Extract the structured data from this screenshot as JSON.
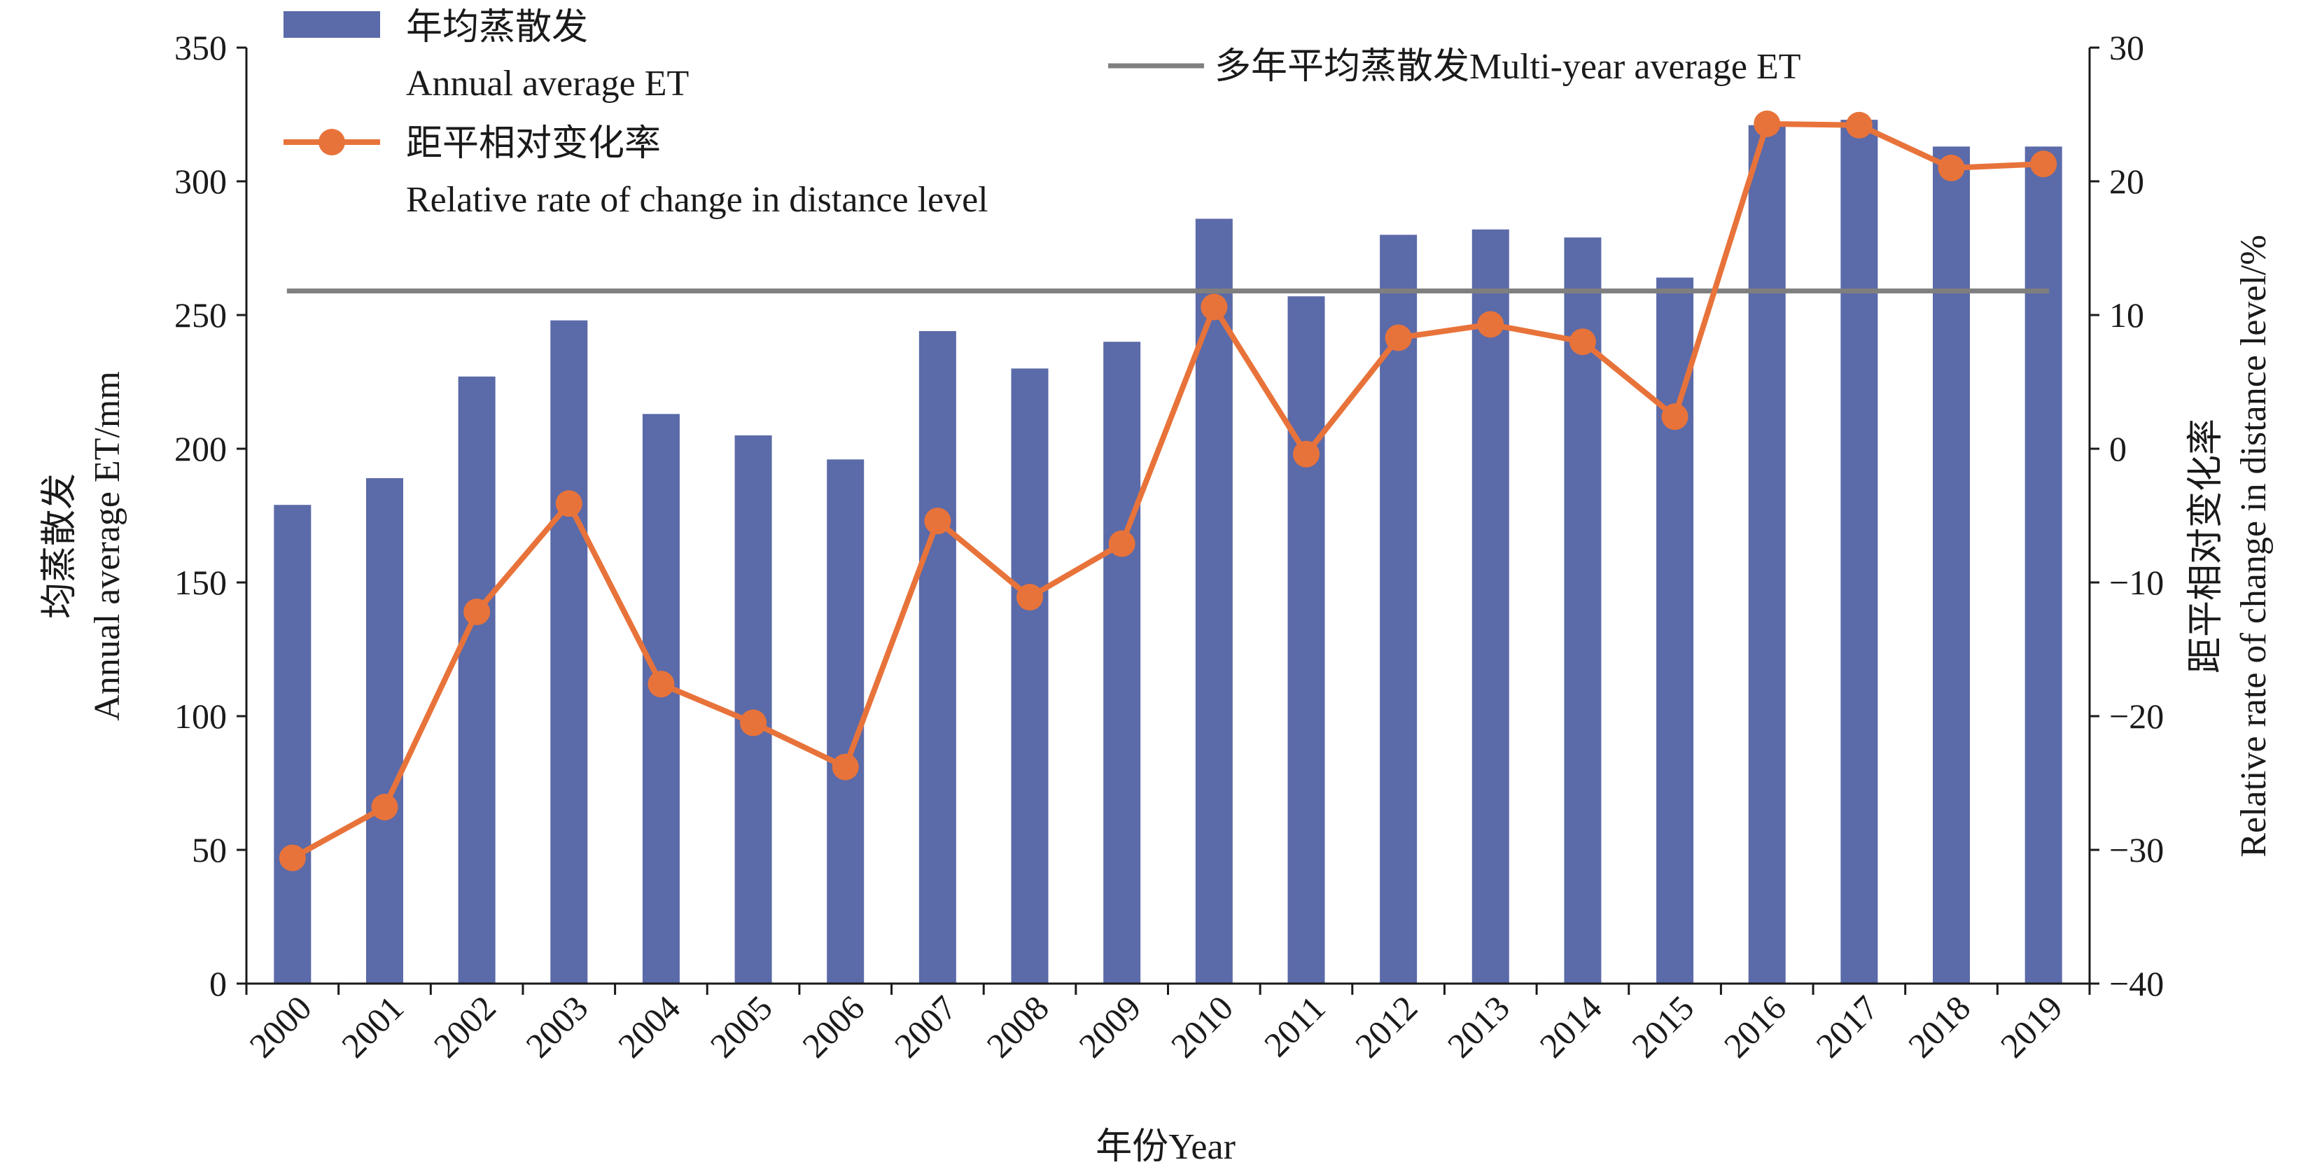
{
  "chart_data": {
    "type": "bar",
    "categories": [
      "2000",
      "2001",
      "2002",
      "2003",
      "2004",
      "2005",
      "2006",
      "2007",
      "2008",
      "2009",
      "2010",
      "2011",
      "2012",
      "2013",
      "2014",
      "2015",
      "2016",
      "2017",
      "2018",
      "2019"
    ],
    "series": [
      {
        "name": "年均蒸散发 Annual average ET",
        "type": "bar",
        "axis": "left",
        "color": "#5b6aa8",
        "values": [
          179,
          189,
          227,
          248,
          213,
          205,
          196,
          244,
          230,
          240,
          286,
          257,
          280,
          282,
          279,
          264,
          321,
          323,
          313,
          313
        ]
      },
      {
        "name": "距平相对变化率 Relative rate of change in distance level",
        "type": "line",
        "axis": "right",
        "color": "#e8733a",
        "marker": "circle",
        "values": [
          -30.6,
          -26.8,
          -12.2,
          -4.1,
          -17.6,
          -20.5,
          -23.8,
          -5.4,
          -11.1,
          -7.1,
          10.6,
          -0.4,
          8.3,
          9.3,
          8.0,
          2.4,
          24.3,
          24.2,
          21.0,
          21.3
        ]
      },
      {
        "name": "多年平均蒸散发Multi-year average ET",
        "type": "hline",
        "axis": "left",
        "color": "#7f7f7f",
        "value": 259
      }
    ],
    "xlabel": "年份Year",
    "ylabel_left": [
      "均蒸散发",
      "Annual average ET/mm"
    ],
    "ylabel_right": [
      "距平相对变化率",
      "Relative rate of change in distance level/%"
    ],
    "ylim_left": [
      0,
      350
    ],
    "yticks_left": [
      0,
      50,
      100,
      150,
      200,
      250,
      300,
      350
    ],
    "ylim_right": [
      -40,
      30
    ],
    "yticks_right": [
      "−40",
      "−30",
      "−20",
      "−10",
      "0",
      "10",
      "20",
      "30"
    ],
    "yticks_right_values": [
      -40,
      -30,
      -20,
      -10,
      0,
      10,
      20,
      30
    ],
    "legend": [
      {
        "symbol": "bar",
        "lines": [
          "年均蒸散发",
          "Annual average ET"
        ]
      },
      {
        "symbol": "line-marker",
        "lines": [
          "距平相对变化率",
          "Relative rate of change in distance level"
        ]
      },
      {
        "symbol": "line",
        "lines": [
          "多年平均蒸散发Multi-year average ET"
        ]
      }
    ],
    "grid": false,
    "legend_position": "top"
  }
}
